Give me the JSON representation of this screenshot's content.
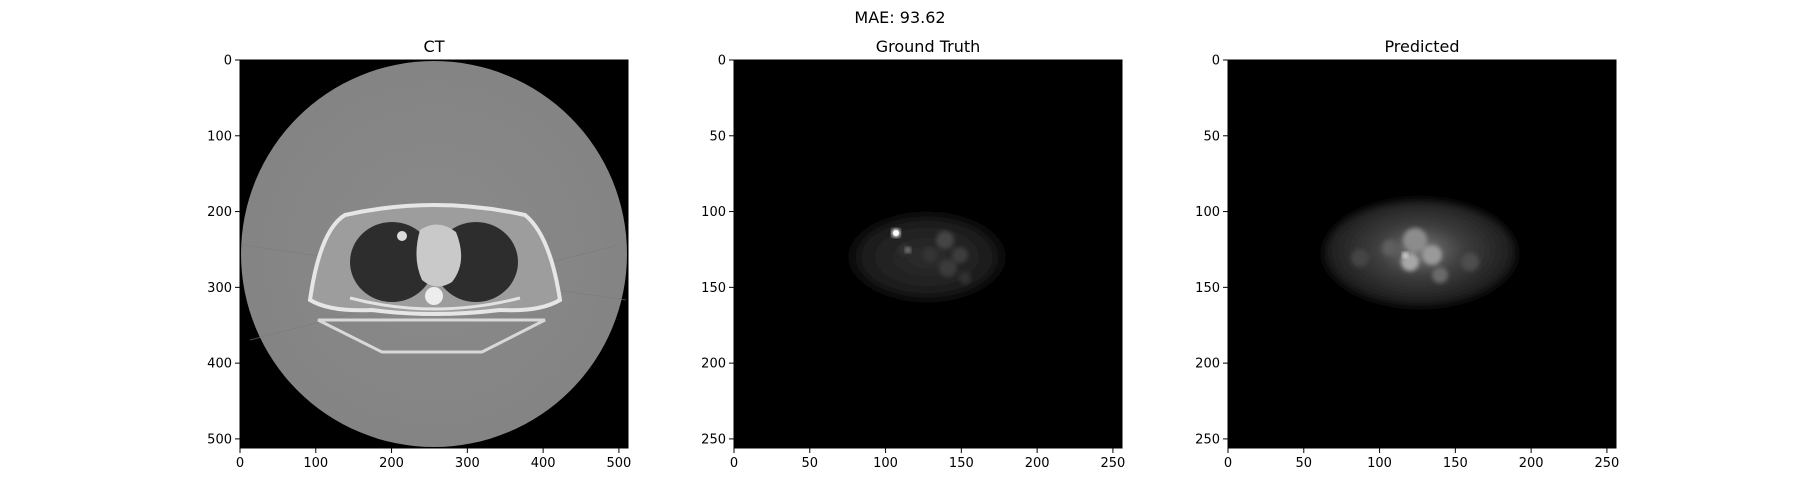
{
  "figure": {
    "suptitle": "MAE: 93.62"
  },
  "panels": [
    {
      "id": "ct",
      "title": "CT",
      "xlim": [
        0,
        512
      ],
      "ylim": [
        512,
        0
      ],
      "xticks": [
        0,
        100,
        200,
        300,
        400,
        500
      ],
      "yticks": [
        0,
        100,
        200,
        300,
        400,
        500
      ]
    },
    {
      "id": "gt",
      "title": "Ground Truth",
      "xlim": [
        0,
        256
      ],
      "ylim": [
        256,
        0
      ],
      "xticks": [
        0,
        50,
        100,
        150,
        200,
        250
      ],
      "yticks": [
        0,
        50,
        100,
        150,
        200,
        250
      ]
    },
    {
      "id": "pred",
      "title": "Predicted",
      "xlim": [
        0,
        256
      ],
      "ylim": [
        256,
        0
      ],
      "xticks": [
        0,
        50,
        100,
        150,
        200,
        250
      ],
      "yticks": [
        0,
        50,
        100,
        150,
        200,
        250
      ]
    }
  ]
}
